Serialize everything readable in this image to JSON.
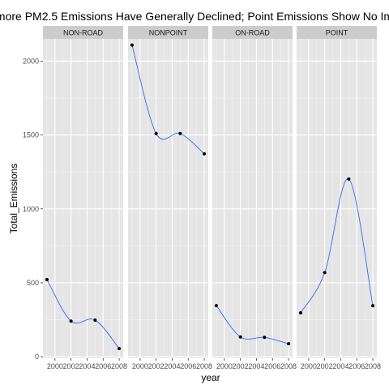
{
  "chart_data": {
    "type": "line",
    "title": "more PM2.5 Emissions Have Generally Declined; Point Emissions Show No Im",
    "xlabel": "year",
    "ylabel": "Total_Emissions",
    "x": [
      1999,
      2002,
      2005,
      2008
    ],
    "xlim": [
      1998.5,
      2008.5
    ],
    "ylim": [
      -10,
      2150
    ],
    "y_ticks": [
      0,
      500,
      1000,
      1500,
      2000
    ],
    "y_tick_labels": [
      "0",
      "500",
      "1000",
      "1500",
      "2000"
    ],
    "x_ticks": [
      2000,
      2002,
      2004,
      2006,
      2008
    ],
    "x_tick_labels": [
      "2000",
      "2002",
      "2004",
      "2006",
      "2008"
    ],
    "grid": true,
    "colors": {
      "panel": "#e5e5e5",
      "grid_major": "#ffffff",
      "grid_minor": "#f2f2f2",
      "strip": "#cccccc",
      "line": "#3366ff",
      "point": "#000000"
    },
    "facets": [
      {
        "label": "NON-ROAD",
        "values": [
          522,
          241,
          248,
          55
        ]
      },
      {
        "label": "NONPOINT",
        "values": [
          2108,
          1510,
          1510,
          1373
        ]
      },
      {
        "label": "ON-ROAD",
        "values": [
          346,
          134,
          131,
          88
        ]
      },
      {
        "label": "POINT",
        "values": [
          297,
          569,
          1202,
          345
        ]
      }
    ]
  }
}
